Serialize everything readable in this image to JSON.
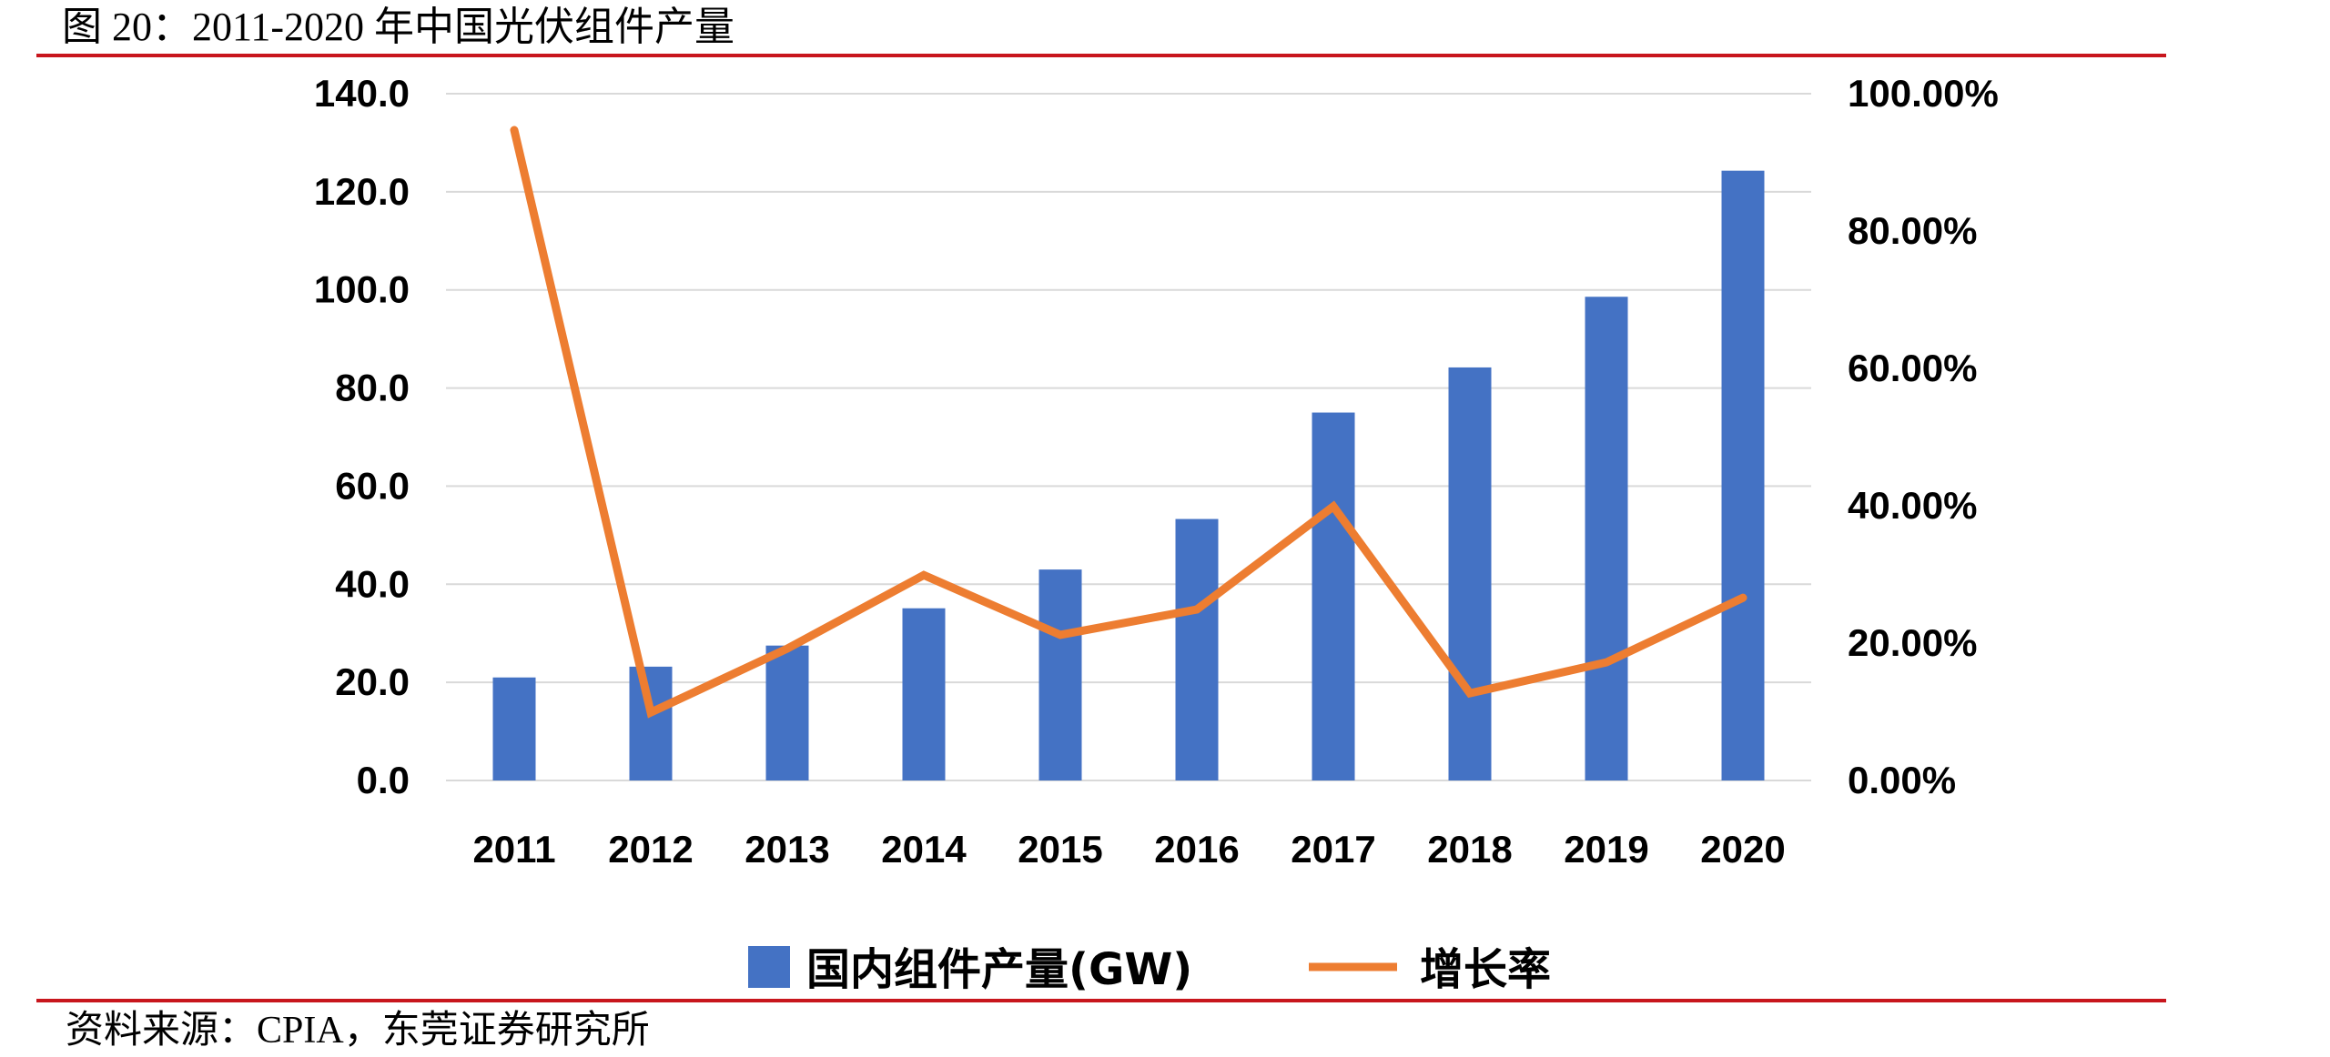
{
  "figure": {
    "title": "图 20：2011-2020 年中国光伏组件产量",
    "source": "资料来源：CPIA，东莞证券研究所"
  },
  "colors": {
    "bar": "#4472C4",
    "line": "#ED7D31",
    "rule": "#C8161D",
    "grid": "#D9D9D9"
  },
  "legend": {
    "items": [
      {
        "label": "国内组件产量(GW)",
        "kind": "bar-swatch"
      },
      {
        "label": "增长率",
        "kind": "line-swatch"
      }
    ]
  },
  "chart_data": {
    "type": "bar+line",
    "title": "2011-2020 年中国光伏组件产量",
    "categories": [
      "2011",
      "2012",
      "2013",
      "2014",
      "2015",
      "2016",
      "2017",
      "2018",
      "2019",
      "2020"
    ],
    "series": [
      {
        "name": "国内组件产量(GW)",
        "type": "bar",
        "axis": "left",
        "values": [
          21.0,
          23.2,
          27.5,
          35.1,
          43.0,
          53.3,
          75.0,
          84.2,
          98.6,
          124.3
        ]
      },
      {
        "name": "增长率",
        "type": "line",
        "axis": "right",
        "unit": "%",
        "values": [
          94.7,
          9.9,
          19.2,
          29.9,
          21.2,
          24.9,
          39.9,
          12.7,
          17.2,
          26.6
        ]
      }
    ],
    "left_axis": {
      "ylim": [
        0,
        140
      ],
      "ticks": [
        "0.0",
        "20.0",
        "40.0",
        "60.0",
        "80.0",
        "100.0",
        "120.0",
        "140.0"
      ]
    },
    "right_axis": {
      "ylim": [
        0,
        100
      ],
      "ticks": [
        "0.00%",
        "20.00%",
        "40.00%",
        "60.00%",
        "80.00%",
        "100.00%"
      ]
    },
    "xlabel": "",
    "ylabel": "",
    "grid": true,
    "legend_position": "bottom"
  }
}
